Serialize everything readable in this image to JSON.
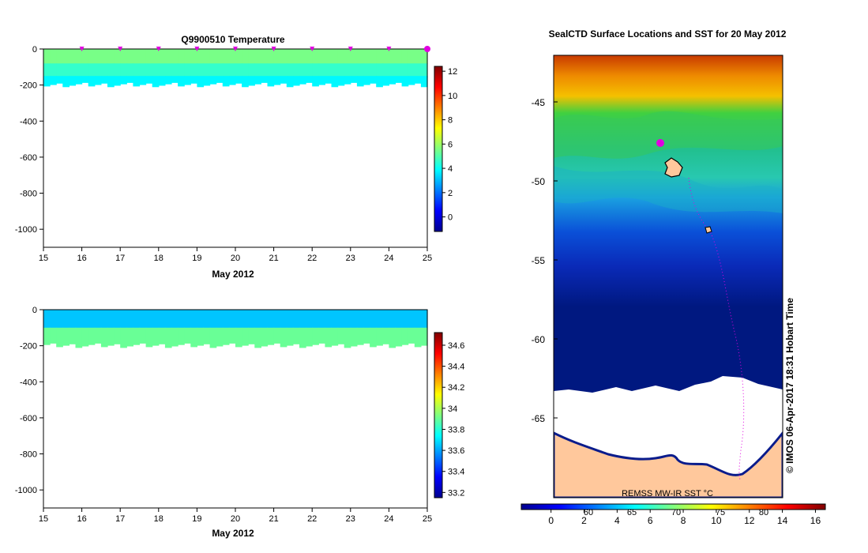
{
  "chart_data": [
    {
      "type": "heatmap",
      "id": "temperature-section",
      "title": "Q9900510  Temperature",
      "xlabel": "May 2012",
      "x_ticks": [
        "15",
        "16",
        "17",
        "18",
        "19",
        "20",
        "21",
        "22",
        "23",
        "24",
        "25"
      ],
      "xlim": [
        15,
        25
      ],
      "ylim": [
        -1100,
        0
      ],
      "y_ticks": [
        0,
        -200,
        -400,
        -600,
        -800,
        -1000
      ],
      "profile_markers_day": [
        16,
        17,
        18,
        19,
        20,
        21,
        22,
        23,
        24,
        25
      ],
      "colorbar": {
        "ticks": [
          12,
          10,
          8,
          6,
          4,
          2,
          0
        ],
        "range": [
          -1.2,
          12.4
        ]
      },
      "layers": [
        {
          "label": "surface",
          "value": 5.5,
          "depth_top": 0,
          "depth_bottom": -90
        },
        {
          "label": "middle",
          "value": 4.6,
          "depth_top": -80,
          "depth_bottom": -160
        },
        {
          "label": "bottom",
          "value": 3.8,
          "depth_top": -150,
          "depth_bottom": -200
        }
      ]
    },
    {
      "type": "heatmap",
      "id": "salinity-section",
      "title": "",
      "xlabel": "May 2012",
      "x_ticks": [
        "15",
        "16",
        "17",
        "18",
        "19",
        "20",
        "21",
        "22",
        "23",
        "24",
        "25"
      ],
      "xlim": [
        15,
        25
      ],
      "ylim": [
        -1100,
        0
      ],
      "y_ticks": [
        0,
        -200,
        -400,
        -600,
        -800,
        -1000
      ],
      "colorbar": {
        "ticks": [
          34.6,
          34.4,
          34.2,
          34,
          33.8,
          33.6,
          33.4,
          33.2
        ],
        "range": [
          33.15,
          34.72
        ]
      },
      "layers": [
        {
          "label": "surface",
          "value": 33.65,
          "depth_top": 0,
          "depth_bottom": -110
        },
        {
          "label": "deep",
          "value": 33.9,
          "depth_top": -100,
          "depth_bottom": -200
        }
      ]
    },
    {
      "type": "map",
      "id": "sst-map",
      "title": "SealCTD Surface Locations and SST for 20 May 2012",
      "y_ticks": [
        "-45",
        "-50",
        "-55",
        "-60",
        "-65"
      ],
      "x_axis_labels": [
        "60",
        "65",
        "70",
        "75",
        "80"
      ],
      "credit": "REMSS MW-IR SST °C",
      "colorbar": {
        "ticks": [
          "0",
          "2",
          "4",
          "6",
          "8",
          "10",
          "12",
          "14",
          "16"
        ],
        "range": [
          -1.8,
          16.6
        ]
      }
    }
  ],
  "watermark": "© IMOS 06-Apr-2017 18:31 Hobart Time",
  "colors": {
    "temp_surface": "#55d61a",
    "temp_middle": "#18c86a",
    "temp_bottom": "#12b58a",
    "sal_surface": "#19c8c8",
    "sal_deep": "#14c46e",
    "marker": "#e000e0",
    "land": "#ffc89c",
    "ice": "#ffffff"
  }
}
